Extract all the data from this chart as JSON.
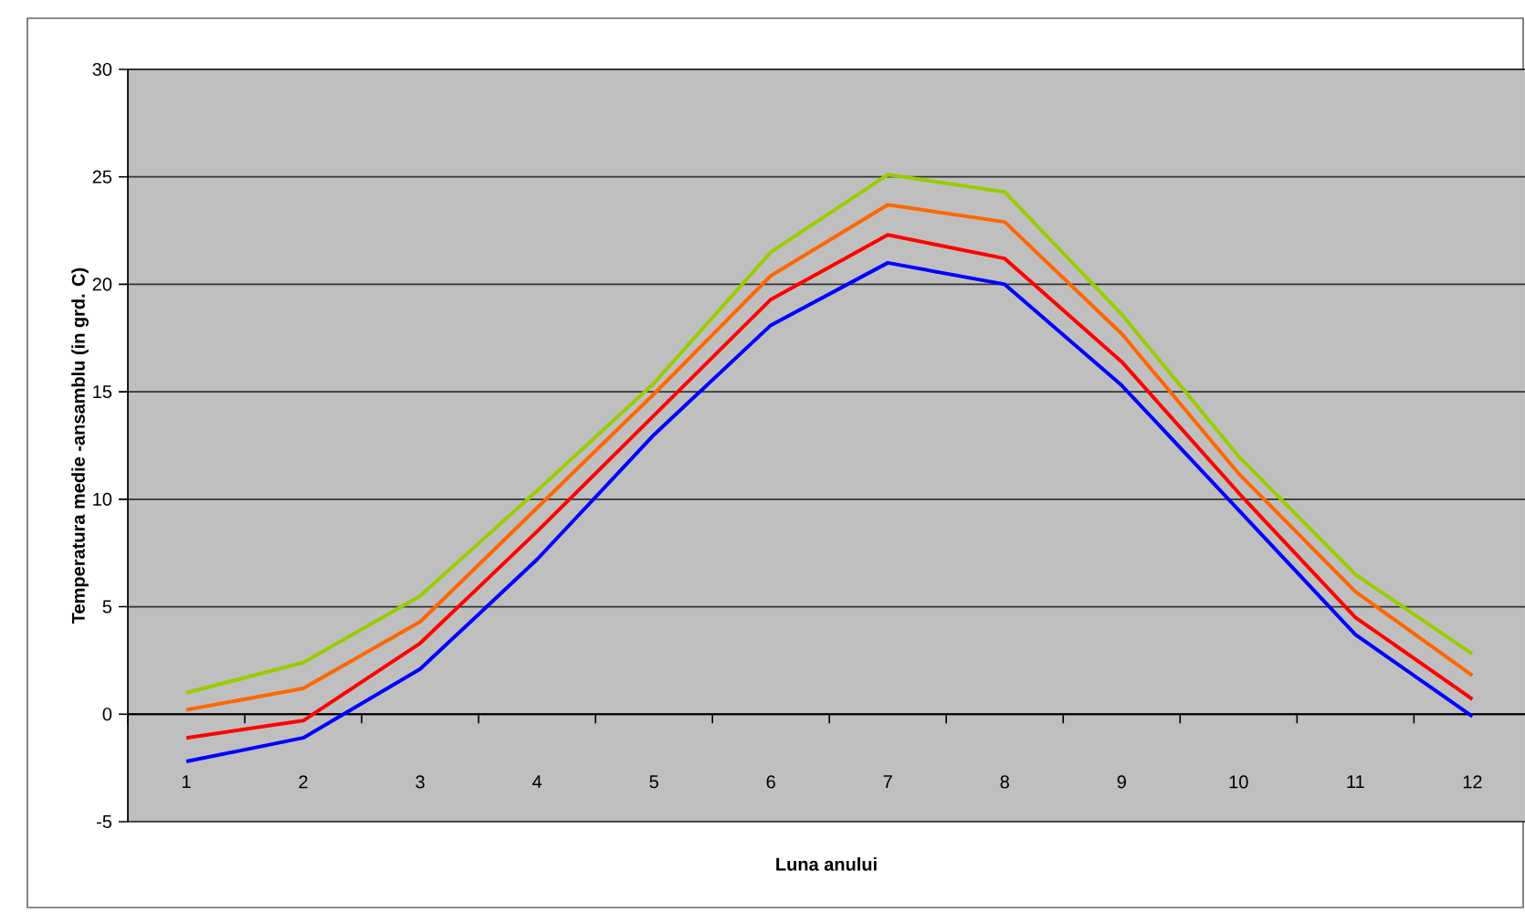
{
  "chart_data": {
    "type": "line",
    "xlabel": "Luna anului",
    "ylabel": "Temperatura medie -ansamblu (in grd. C)",
    "categories": [
      "1",
      "2",
      "3",
      "4",
      "5",
      "6",
      "7",
      "8",
      "9",
      "10",
      "11",
      "12"
    ],
    "series": [
      {
        "color": "#99cc00",
        "values": [
          1.0,
          2.4,
          5.5,
          10.4,
          15.4,
          21.5,
          25.1,
          24.3,
          18.6,
          12.0,
          6.5,
          2.8
        ]
      },
      {
        "color": "#ff6600",
        "values": [
          0.2,
          1.2,
          4.3,
          9.6,
          14.9,
          20.4,
          23.7,
          22.9,
          17.7,
          11.2,
          5.7,
          1.8
        ]
      },
      {
        "color": "#ff0000",
        "values": [
          -1.1,
          -0.3,
          3.3,
          8.5,
          13.9,
          19.3,
          22.3,
          21.2,
          16.4,
          10.3,
          4.5,
          0.7
        ]
      },
      {
        "color": "#0000ff",
        "values": [
          -2.2,
          -1.1,
          2.1,
          7.2,
          13.0,
          18.1,
          21.0,
          20.0,
          15.3,
          9.5,
          3.7,
          -0.1
        ]
      }
    ],
    "ylim": [
      -5,
      30
    ],
    "yticks": [
      -5,
      0,
      5,
      10,
      15,
      20,
      25,
      30
    ],
    "grid": "y",
    "marker": "none",
    "line_style": "solid"
  }
}
